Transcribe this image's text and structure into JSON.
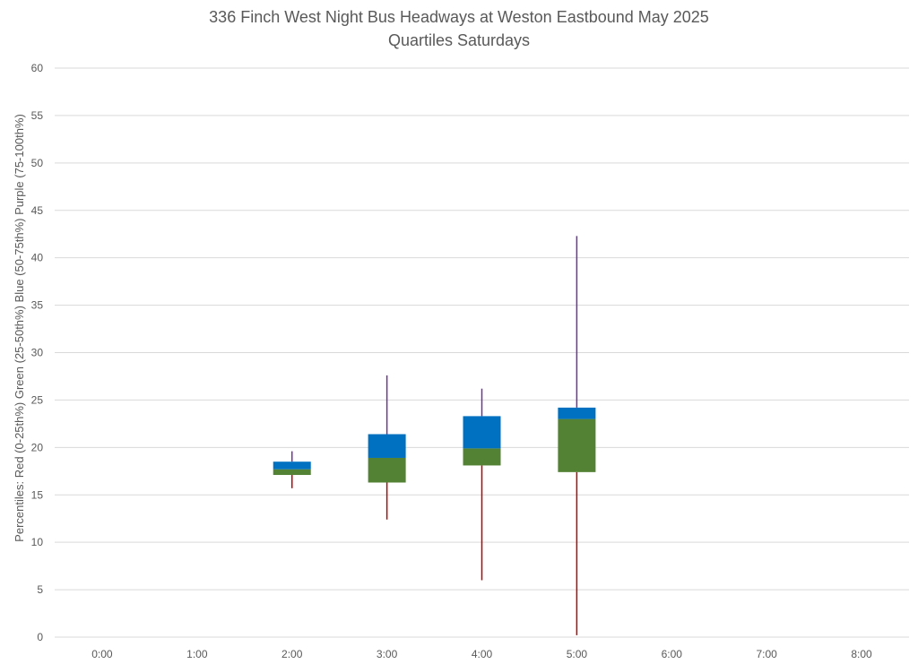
{
  "chart_data": {
    "type": "box",
    "title": "336 Finch West Night Bus Headways at Weston Eastbound May 2025",
    "subtitle": "Quartiles Saturdays",
    "ylabel": "Percentiles:  Red (0-25th%)  Green (25-50th%)  Blue (50-75th%)  Purple (75-100th%)",
    "xlabel": "",
    "ylim": [
      0,
      60
    ],
    "yticks": [
      0,
      5,
      10,
      15,
      20,
      25,
      30,
      35,
      40,
      45,
      50,
      55,
      60
    ],
    "grid": true,
    "categories": [
      "0:00",
      "1:00",
      "2:00",
      "3:00",
      "4:00",
      "5:00",
      "6:00",
      "7:00",
      "8:00"
    ],
    "boxes": [
      {
        "category": "2:00",
        "min": 15.7,
        "q1": 17.1,
        "median": 17.7,
        "q3": 18.5,
        "max": 19.6
      },
      {
        "category": "3:00",
        "min": 12.4,
        "q1": 16.3,
        "median": 18.9,
        "q3": 21.4,
        "max": 27.6
      },
      {
        "category": "4:00",
        "min": 6.0,
        "q1": 18.1,
        "median": 19.9,
        "q3": 23.3,
        "max": 26.2
      },
      {
        "category": "5:00",
        "min": 0.2,
        "q1": 17.4,
        "median": 23.0,
        "q3": 24.2,
        "max": 42.3
      }
    ],
    "colors": {
      "lower_whisker": "#c00000",
      "lower_box": "#548235",
      "upper_box": "#0070c0",
      "upper_whisker": "#7030a0",
      "grid": "#d9d9d9",
      "text": "#595959"
    }
  }
}
